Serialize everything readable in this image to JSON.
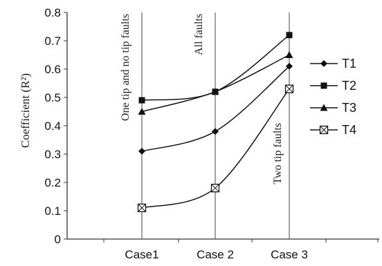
{
  "chart_data": {
    "type": "line",
    "categories": [
      "Case1",
      "Case 2",
      "Case 3"
    ],
    "ylabel": "Coefficient (R²)",
    "ylim": [
      0,
      0.8
    ],
    "yticks": [
      "0",
      "0.1",
      "0.2",
      "0.3",
      "0.4",
      "0.5",
      "0.6",
      "0.7",
      "0.8"
    ],
    "grid": false,
    "legend_position": "right",
    "series": [
      {
        "name": "T1",
        "marker": "diamond",
        "values": [
          0.31,
          0.38,
          0.61
        ]
      },
      {
        "name": "T2",
        "marker": "square",
        "values": [
          0.49,
          0.52,
          0.72
        ]
      },
      {
        "name": "T3",
        "marker": "triangle",
        "values": [
          0.45,
          0.52,
          0.65
        ]
      },
      {
        "name": "T4",
        "marker": "boxed-x",
        "values": [
          0.11,
          0.18,
          0.53
        ]
      }
    ],
    "annotations": [
      {
        "text": "One tip and no tip faults",
        "category": "Case1"
      },
      {
        "text": "All faults",
        "category": "Case 2"
      },
      {
        "text": "Two tip faults",
        "category": "Case 3"
      }
    ]
  }
}
